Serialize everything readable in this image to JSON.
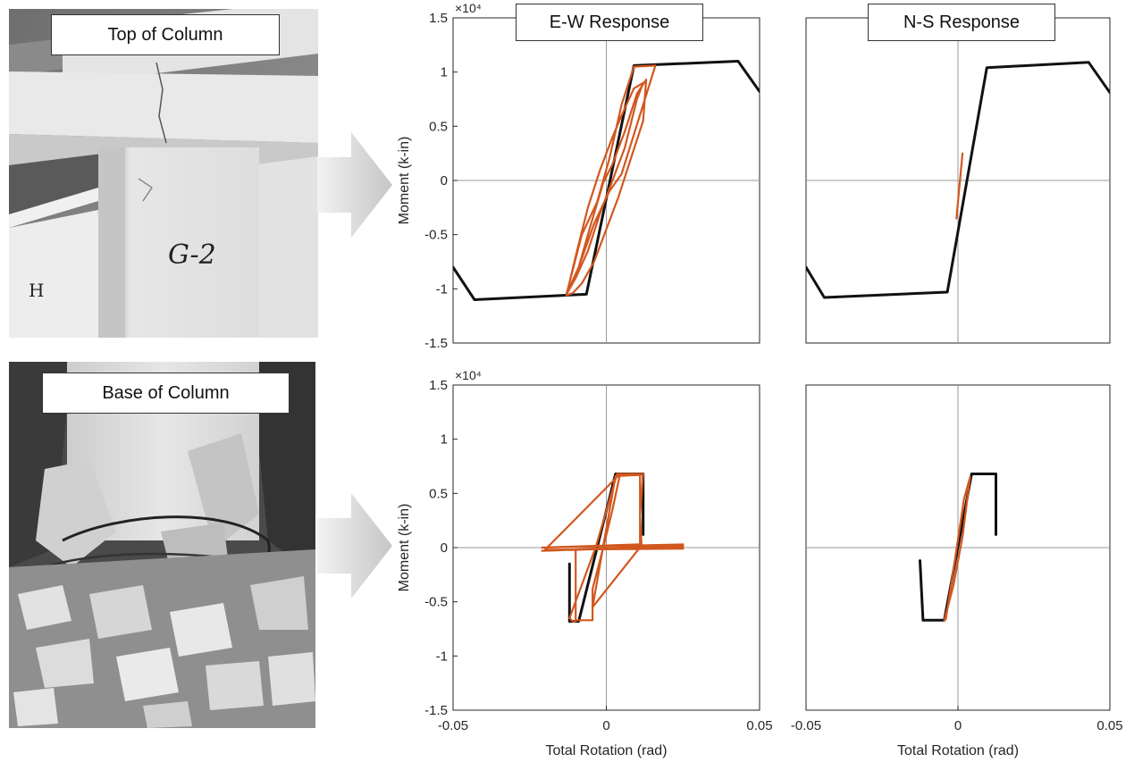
{
  "photos": {
    "top_label": "Top of Column",
    "base_label": "Base of Column",
    "column_marking": "G-2",
    "wall_marking": "H"
  },
  "responses": {
    "ew_label": "E-W Response",
    "ns_label": "N-S Response"
  },
  "colors": {
    "envelope": "#111111",
    "hysteresis": "#d2571f",
    "axis_line": "#9a9a9a"
  },
  "chart_data": [
    {
      "type": "line",
      "panel": "top-ew",
      "xlabel": "",
      "ylabel": "Moment (k-in)",
      "xlim": [
        -0.05,
        0.05
      ],
      "ylim": [
        -15000,
        15000
      ],
      "y_ticks": [
        15000,
        10000,
        5000,
        0,
        -5000,
        -10000,
        -15000
      ],
      "y_tick_labels": [
        "1.5",
        "1",
        "0.5",
        "0",
        "-0.5",
        "-1",
        "-1.5"
      ],
      "y_multiplier": "×10⁴",
      "series": [
        {
          "role": "envelope",
          "x": [
            -0.05,
            -0.043,
            -0.0065,
            0.009,
            0.043,
            0.05
          ],
          "y": [
            -8000,
            -11000,
            -10500,
            10600,
            11000,
            8200
          ]
        },
        {
          "role": "hysteresis",
          "x": [
            -0.013,
            -0.009,
            -0.005,
            -0.001,
            0.002,
            0.006,
            0.01,
            0.013,
            0.012,
            0.008,
            0.004,
            0.0,
            -0.004,
            -0.008,
            -0.011,
            -0.013,
            -0.01,
            -0.006,
            -0.002,
            0.002,
            0.005,
            0.009,
            0.012,
            0.01,
            0.006,
            0.002,
            -0.002,
            -0.006,
            -0.01,
            -0.013,
            -0.008,
            -0.003,
            0.001,
            0.005,
            0.009,
            0.016,
            0.005,
            0.001,
            -0.004,
            -0.009,
            -0.013
          ],
          "y": [
            -10500,
            -8000,
            -4000,
            -200,
            1500,
            4500,
            8000,
            9300,
            5500,
            2000,
            -1500,
            -4500,
            -7500,
            -9500,
            -10400,
            -10600,
            -7000,
            -2500,
            1000,
            4000,
            6000,
            8500,
            9000,
            7500,
            3000,
            0,
            -3000,
            -6500,
            -9000,
            -10500,
            -5000,
            -2000,
            2000,
            7000,
            10500,
            10600,
            600,
            -1000,
            -4000,
            -8000,
            -10500
          ]
        }
      ]
    },
    {
      "type": "line",
      "panel": "top-ns",
      "xlabel": "",
      "ylabel": "",
      "xlim": [
        -0.05,
        0.05
      ],
      "ylim": [
        -15000,
        15000
      ],
      "series": [
        {
          "role": "envelope",
          "x": [
            -0.05,
            -0.044,
            -0.0035,
            0.0095,
            0.043,
            0.05
          ],
          "y": [
            -8000,
            -10800,
            -10300,
            10400,
            10900,
            8100
          ]
        },
        {
          "role": "hysteresis",
          "x": [
            -0.0005,
            0.0015
          ],
          "y": [
            -3500,
            2500
          ]
        }
      ]
    },
    {
      "type": "line",
      "panel": "base-ew",
      "xlabel": "Total Rotation (rad)",
      "ylabel": "Moment (k-in)",
      "xlim": [
        -0.05,
        0.05
      ],
      "ylim": [
        -15000,
        15000
      ],
      "x_ticks": [
        -0.05,
        0,
        0.05
      ],
      "x_tick_labels": [
        "-0.05",
        "0",
        "0.05"
      ],
      "y_ticks": [
        15000,
        10000,
        5000,
        0,
        -5000,
        -10000,
        -15000
      ],
      "y_tick_labels": [
        "1.5",
        "1",
        "0.5",
        "0",
        "-0.5",
        "-1",
        "-1.5"
      ],
      "y_multiplier": "×10⁴",
      "series": [
        {
          "role": "envelope",
          "x": [
            -0.012,
            -0.012,
            -0.009,
            0.003,
            0.012,
            0.012
          ],
          "y": [
            -1500,
            -6800,
            -6800,
            6800,
            6800,
            1200
          ]
        },
        {
          "role": "hysteresis",
          "x": [
            -0.01,
            -0.011,
            -0.012,
            -0.0035,
            0.0035,
            0.012,
            0.011,
            0.0115,
            -0.0045,
            0.003,
            0.011,
            0.011,
            -0.021,
            0.025,
            0.025,
            -0.021,
            0.025,
            0.025,
            -0.02,
            0.0045,
            0.002,
            -0.001,
            -0.0045,
            -0.0045,
            -0.01,
            -0.01
          ],
          "y": [
            -6800,
            -6800,
            -6500,
            0,
            6800,
            6800,
            3000,
            200,
            -5500,
            6600,
            6700,
            300,
            0,
            300,
            100,
            -300,
            200,
            -100,
            -200,
            6800,
            3500,
            0,
            -3800,
            -6700,
            -6700,
            -200
          ]
        }
      ]
    },
    {
      "type": "line",
      "panel": "base-ns",
      "xlabel": "Total Rotation (rad)",
      "ylabel": "",
      "xlim": [
        -0.05,
        0.05
      ],
      "ylim": [
        -15000,
        15000
      ],
      "x_ticks": [
        -0.05,
        0,
        0.05
      ],
      "x_tick_labels": [
        "-0.05",
        "0",
        "0.05"
      ],
      "series": [
        {
          "role": "envelope",
          "x": [
            -0.0125,
            -0.0115,
            -0.0045,
            0.0045,
            0.0125,
            0.0125
          ],
          "y": [
            -1200,
            -6700,
            -6700,
            6800,
            6800,
            1200
          ]
        },
        {
          "role": "hysteresis",
          "x": [
            -0.0045,
            -0.0015,
            0.0015,
            0.004,
            0.002,
            -0.002,
            -0.004
          ],
          "y": [
            -6700,
            -3500,
            1000,
            6500,
            4500,
            -3000,
            -6600
          ]
        }
      ]
    }
  ]
}
